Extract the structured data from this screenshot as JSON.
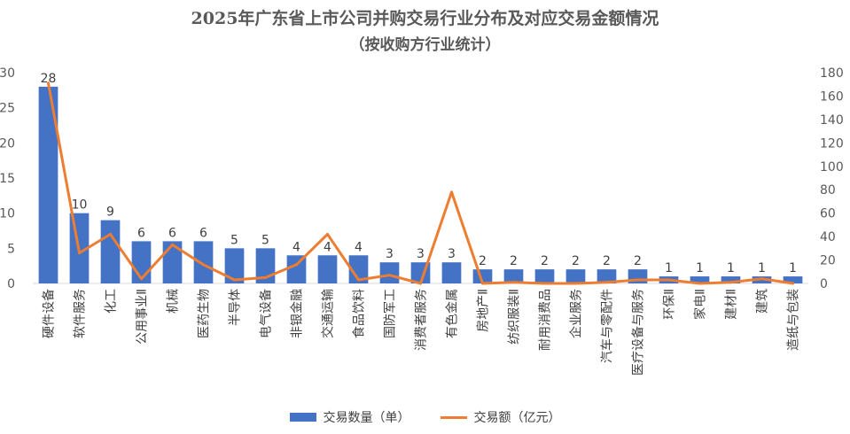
{
  "chart_data": {
    "type": "bar+line",
    "title": "2025年广东省上市公司并购交易行业分布及对应交易金额情况",
    "subtitle": "（按收购方行业统计）",
    "categories": [
      "硬件设备",
      "软件服务",
      "化工",
      "公用事业Ⅱ",
      "机械",
      "医药生物",
      "半导体",
      "电气设备",
      "非银金融",
      "交通运输",
      "食品饮料",
      "国防军工",
      "消费者服务",
      "有色金属",
      "房地产Ⅱ",
      "纺织服装Ⅱ",
      "耐用消费品",
      "企业服务",
      "汽车与零配件",
      "医疗设备与服务",
      "环保Ⅱ",
      "家电Ⅱ",
      "建材Ⅱ",
      "建筑",
      "造纸与包装"
    ],
    "series": [
      {
        "name": "交易数量（单）",
        "type": "bar",
        "axis": "left",
        "color": "#4472c4",
        "values": [
          28,
          10,
          9,
          6,
          6,
          6,
          5,
          5,
          4,
          4,
          4,
          3,
          3,
          3,
          2,
          2,
          2,
          2,
          2,
          2,
          1,
          1,
          1,
          1,
          1
        ]
      },
      {
        "name": "交易额（亿元）",
        "type": "line",
        "axis": "right",
        "color": "#ed7d31",
        "values": [
          171,
          26,
          42,
          4,
          33,
          16,
          3,
          5,
          16,
          42,
          3,
          7,
          0,
          78,
          0,
          1,
          0,
          0,
          1,
          3,
          3,
          0,
          1,
          4,
          0
        ]
      }
    ],
    "y_left": {
      "min": 0,
      "max": 30,
      "ticks": [
        0,
        5,
        10,
        15,
        20,
        25,
        30
      ]
    },
    "y_right": {
      "min": 0,
      "max": 180,
      "ticks": [
        0,
        20,
        40,
        60,
        80,
        100,
        120,
        140,
        160,
        180
      ]
    },
    "grid": false,
    "legend_position": "bottom"
  }
}
